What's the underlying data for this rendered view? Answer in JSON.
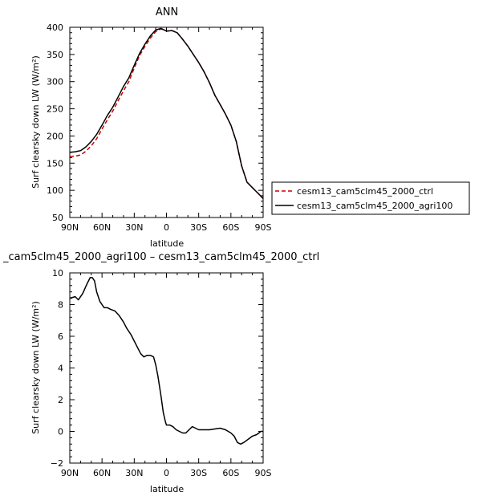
{
  "chart_data": [
    {
      "type": "line",
      "title": "ANN",
      "xlabel": "latitude",
      "ylabel": "Surf clearsky down LW (W/m²)",
      "xlim": [
        90,
        -90
      ],
      "ylim": [
        50,
        400
      ],
      "xticks": [
        90,
        60,
        30,
        0,
        -30,
        -60,
        -90
      ],
      "xtick_labels": [
        "90N",
        "60N",
        "30N",
        "0",
        "30S",
        "60S",
        "90S"
      ],
      "yticks": [
        50,
        100,
        150,
        200,
        250,
        300,
        350,
        400
      ],
      "ytick_labels": [
        "50",
        "100",
        "150",
        "200",
        "250",
        "300",
        "350",
        "400"
      ],
      "legend_placement": "right",
      "series": [
        {
          "name": "cesm13_cam5clm45_2000_ctrl",
          "color": "#cc0000",
          "dash": "dashed",
          "x": [
            90,
            85,
            80,
            75,
            70,
            65,
            60,
            55,
            50,
            45,
            40,
            35,
            30,
            25,
            20,
            15,
            10,
            5,
            0,
            -5,
            -10,
            -15,
            -20,
            -25,
            -30,
            -35,
            -40,
            -45,
            -50,
            -55,
            -60,
            -65,
            -70,
            -75,
            -80,
            -85,
            -90
          ],
          "y": [
            162,
            163,
            165,
            172,
            182,
            195,
            213,
            230,
            246,
            265,
            283,
            300,
            325,
            348,
            365,
            380,
            392,
            397,
            393,
            394,
            390,
            378,
            365,
            350,
            335,
            318,
            298,
            275,
            258,
            240,
            220,
            190,
            145,
            115,
            105,
            95,
            85
          ]
        },
        {
          "name": "cesm13_cam5clm45_2000_agri100",
          "color": "#000000",
          "dash": "solid",
          "x": [
            90,
            85,
            80,
            75,
            70,
            65,
            60,
            55,
            50,
            45,
            40,
            35,
            30,
            25,
            20,
            15,
            10,
            5,
            0,
            -5,
            -10,
            -15,
            -20,
            -25,
            -30,
            -35,
            -40,
            -45,
            -50,
            -55,
            -60,
            -65,
            -70,
            -75,
            -80,
            -85,
            -90
          ],
          "y": [
            170,
            171,
            173,
            180,
            190,
            203,
            220,
            238,
            253,
            272,
            291,
            307,
            330,
            352,
            369,
            384,
            395,
            398,
            393,
            394,
            390,
            378,
            365,
            350,
            335,
            318,
            298,
            275,
            258,
            240,
            220,
            190,
            145,
            115,
            105,
            95,
            85
          ]
        }
      ]
    },
    {
      "type": "line",
      "title": "_cam5clm45_2000_agri100 – cesm13_cam5clm45_2000_ctrl",
      "xlabel": "latitude",
      "ylabel": "Surf clearsky down LW (W/m²)",
      "xlim": [
        90,
        -90
      ],
      "ylim": [
        -2,
        10
      ],
      "xticks": [
        90,
        60,
        30,
        0,
        -30,
        -60,
        -90
      ],
      "xtick_labels": [
        "90N",
        "60N",
        "30N",
        "0",
        "30S",
        "60S",
        "90S"
      ],
      "yticks": [
        -2,
        0,
        2,
        4,
        6,
        8,
        10
      ],
      "ytick_labels": [
        "−2",
        "0",
        "2",
        "4",
        "6",
        "8",
        "10"
      ],
      "series": [
        {
          "color": "#000000",
          "dash": "solid",
          "x": [
            90,
            85,
            82,
            78,
            74,
            71,
            69,
            67,
            65,
            62,
            58,
            55,
            52,
            48,
            44,
            40,
            37,
            33,
            30,
            27,
            24,
            21,
            18,
            15,
            12,
            10,
            8,
            5,
            3,
            1,
            0,
            -3,
            -6,
            -9,
            -12,
            -15,
            -18,
            -21,
            -24,
            -27,
            -30,
            -35,
            -40,
            -45,
            -50,
            -55,
            -60,
            -63,
            -66,
            -69,
            -72,
            -76,
            -80,
            -84,
            -88,
            -90
          ],
          "y": [
            8.4,
            8.5,
            8.3,
            8.7,
            9.3,
            9.7,
            9.7,
            9.5,
            8.8,
            8.2,
            7.8,
            7.8,
            7.7,
            7.6,
            7.3,
            6.9,
            6.5,
            6.1,
            5.7,
            5.3,
            4.9,
            4.7,
            4.8,
            4.8,
            4.7,
            4.2,
            3.5,
            2.2,
            1.2,
            0.6,
            0.4,
            0.4,
            0.3,
            0.1,
            0.0,
            -0.1,
            -0.1,
            0.1,
            0.3,
            0.2,
            0.1,
            0.1,
            0.1,
            0.15,
            0.2,
            0.1,
            -0.1,
            -0.3,
            -0.7,
            -0.8,
            -0.7,
            -0.5,
            -0.3,
            -0.2,
            0.0,
            0.0
          ]
        }
      ]
    }
  ]
}
